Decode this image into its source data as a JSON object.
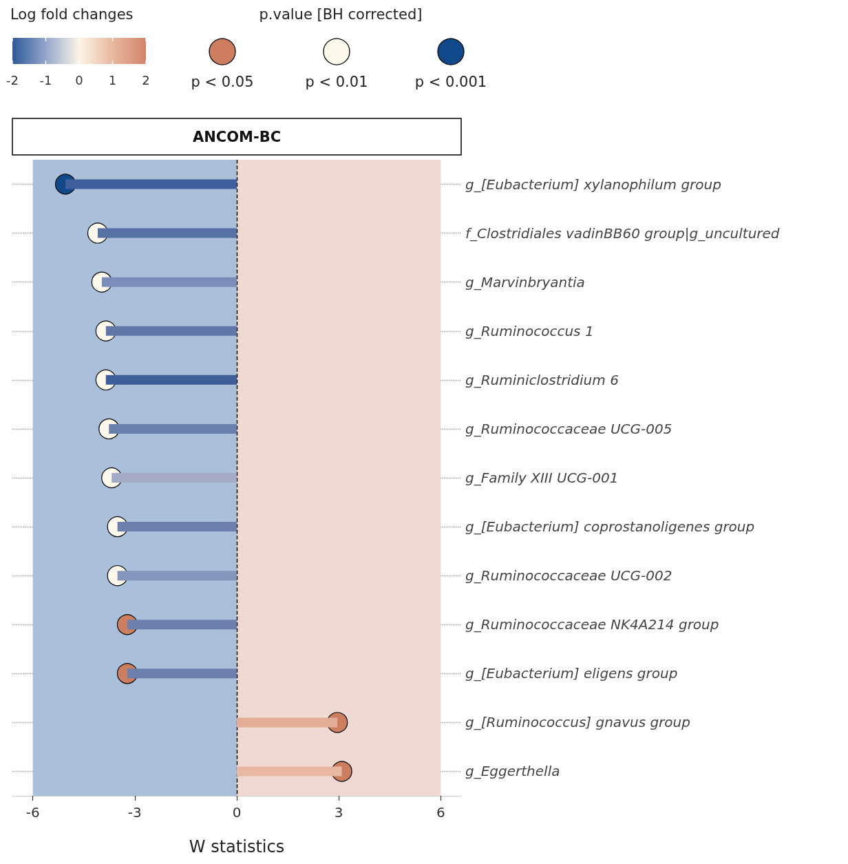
{
  "chart_data": {
    "type": "bar",
    "orientation": "horizontal",
    "title": "ANCOM-BC",
    "xlabel": "W statistics",
    "clabel": "Log fold changes",
    "clim": [
      -2,
      2
    ],
    "cticks": [
      -2,
      -1,
      0,
      1,
      2
    ],
    "legend_title": "p.value [BH corrected]",
    "legend": "top right",
    "marker": "circle",
    "grid": "y",
    "categories": [
      "g_[Eubacterium] xylanophilum group",
      "f_Clostridiales vadinBB60 group|g_uncultured",
      "g_Marvinbryantia",
      "g_Ruminococcus 1",
      "g_Ruminiclostridium 6",
      "g_Ruminococcaceae UCG-005",
      "g_Family XIII UCG-001",
      "g_[Eubacterium] coprostanoligenes group",
      "g_Ruminococcaceae UCG-002",
      "g_Ruminococcaceae NK4A214 group",
      "g_[Eubacterium] eligens group",
      "g_[Ruminococcus] gnavus group",
      "g_Eggerthella"
    ],
    "xlim": [
      -6.6,
      6.6
    ],
    "xticks": [
      -6,
      -3,
      0,
      3,
      6
    ],
    "series": [
      {
        "type": "bar",
        "values": [
          -5.04,
          -4.09,
          -3.97,
          -3.85,
          -3.85,
          -3.76,
          -3.68,
          -3.51,
          -3.51,
          -3.22,
          -3.22,
          2.96,
          3.09
        ],
        "colors": [
          "#3e5f9b",
          "#5571a3",
          "#7a8db8",
          "#5f78a8",
          "#3d5e98",
          "#6a80ad",
          "#a3aac6",
          "#6b80ad",
          "#8396bb",
          "#6b80ad",
          "#6b80ad",
          "#e2ad97",
          "#e8b8a2"
        ]
      },
      {
        "type": "scatter",
        "name": "p < 0.05",
        "color": "#cd7e5e",
        "x": [
          "g_Ruminococcaceae NK4A214 group",
          "g_[Eubacterium] eligens group",
          "g_[Ruminococcus] gnavus group",
          "g_Eggerthella"
        ],
        "values": [
          -3.22,
          -3.22,
          2.96,
          3.09
        ]
      },
      {
        "type": "scatter",
        "name": "p < 0.01",
        "color": "#fdf8ec",
        "x": [
          "f_Clostridiales vadinBB60 group|g_uncultured",
          "g_Marvinbryantia",
          "g_Ruminococcus 1",
          "g_Ruminiclostridium 6",
          "g_Ruminococcaceae UCG-005",
          "g_Family XIII UCG-001",
          "g_[Eubacterium] coprostanoligenes group",
          "g_Ruminococcaceae UCG-002"
        ],
        "values": [
          -4.09,
          -3.97,
          -3.85,
          -3.85,
          -3.76,
          -3.68,
          -3.51,
          -3.51
        ]
      },
      {
        "type": "scatter",
        "name": "p < 0.001",
        "color": "#10498a",
        "x": [
          "g_[Eubacterium] xylanophilum group"
        ],
        "values": [
          -5.04
        ]
      }
    ],
    "bands": [
      {
        "axis": "x",
        "from": -6,
        "to": 0,
        "color": "#aabfd9"
      },
      {
        "axis": "x",
        "from": 0,
        "to": 6,
        "color": "#efd9d1"
      }
    ],
    "ref_lines": [
      {
        "axis": "x",
        "value": 0,
        "color": "#000000",
        "line_style": "dashed"
      }
    ]
  }
}
